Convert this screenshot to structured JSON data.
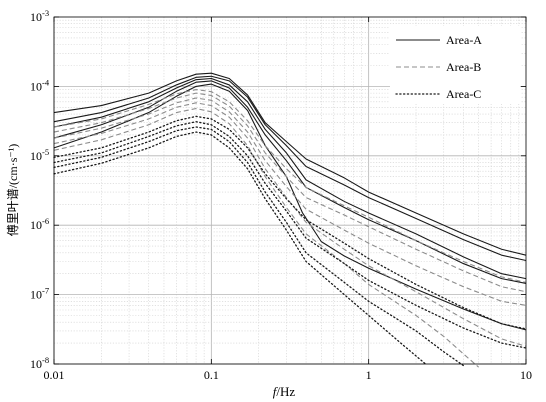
{
  "chart_data": {
    "type": "line",
    "x_scale": "log",
    "y_scale": "log",
    "xlim": [
      0.01,
      10
    ],
    "ylim": [
      1e-08,
      0.001
    ],
    "grid": true,
    "legend_position": "top-right",
    "xlabel": {
      "italic": "f",
      "rest": "/Hz"
    },
    "ylabel": "傅里叶谱/(cm·s⁻¹)",
    "x_ticks": [
      {
        "value": 0.01,
        "label": "0.01"
      },
      {
        "value": 0.1,
        "label": "0.1"
      },
      {
        "value": 1,
        "label": "1"
      },
      {
        "value": 10,
        "label": "10"
      }
    ],
    "y_ticks": [
      {
        "value": 1e-08,
        "label": "10",
        "exp": "-8"
      },
      {
        "value": 1e-07,
        "label": "10",
        "exp": "-7"
      },
      {
        "value": 1e-06,
        "label": "10",
        "exp": "-6"
      },
      {
        "value": 1e-05,
        "label": "10",
        "exp": "-5"
      },
      {
        "value": 0.0001,
        "label": "10",
        "exp": "-4"
      },
      {
        "value": 0.001,
        "label": "10",
        "exp": "-3"
      }
    ],
    "series": [
      {
        "name": "Area-A",
        "dash": "solid",
        "color": "#1a1a1a",
        "width": 1.1,
        "curves": [
          [
            [
              0.01,
              4.2e-05
            ],
            [
              0.02,
              5.3e-05
            ],
            [
              0.04,
              8e-05
            ],
            [
              0.06,
              0.00012
            ],
            [
              0.08,
              0.00015
            ],
            [
              0.1,
              0.000155
            ],
            [
              0.13,
              0.00013
            ],
            [
              0.17,
              7.5e-05
            ],
            [
              0.22,
              3e-05
            ],
            [
              0.3,
              1.6e-05
            ],
            [
              0.4,
              9e-06
            ],
            [
              0.7,
              4.8e-06
            ],
            [
              1,
              3e-06
            ],
            [
              2,
              1.5e-06
            ],
            [
              4,
              7.5e-07
            ],
            [
              7,
              4.5e-07
            ],
            [
              10,
              3.7e-07
            ]
          ],
          [
            [
              0.01,
              3.1e-05
            ],
            [
              0.02,
              4.2e-05
            ],
            [
              0.04,
              6.8e-05
            ],
            [
              0.06,
              0.000105
            ],
            [
              0.08,
              0.000135
            ],
            [
              0.1,
              0.00014
            ],
            [
              0.13,
              0.00012
            ],
            [
              0.17,
              7e-05
            ],
            [
              0.22,
              2.8e-05
            ],
            [
              0.3,
              1.4e-05
            ],
            [
              0.4,
              7e-06
            ],
            [
              0.7,
              3.8e-06
            ],
            [
              1,
              2.5e-06
            ],
            [
              2,
              1.25e-06
            ],
            [
              4,
              6.2e-07
            ],
            [
              7,
              3.7e-07
            ],
            [
              10,
              3.1e-07
            ]
          ],
          [
            [
              0.01,
              2.6e-05
            ],
            [
              0.02,
              3.6e-05
            ],
            [
              0.04,
              6e-05
            ],
            [
              0.06,
              9.5e-05
            ],
            [
              0.08,
              0.000125
            ],
            [
              0.1,
              0.00013
            ],
            [
              0.13,
              0.000105
            ],
            [
              0.17,
              6e-05
            ],
            [
              0.22,
              2.4e-05
            ],
            [
              0.3,
              1.1e-05
            ],
            [
              0.4,
              4.5e-06
            ],
            [
              0.7,
              2.2e-06
            ],
            [
              1,
              1.5e-06
            ],
            [
              2,
              7.5e-07
            ],
            [
              4,
              3.5e-07
            ],
            [
              7,
              2e-07
            ],
            [
              10,
              1.7e-07
            ]
          ],
          [
            [
              0.01,
              1.8e-05
            ],
            [
              0.02,
              2.8e-05
            ],
            [
              0.04,
              5e-05
            ],
            [
              0.06,
              8.5e-05
            ],
            [
              0.08,
              0.000115
            ],
            [
              0.1,
              0.00012
            ],
            [
              0.13,
              9.5e-05
            ],
            [
              0.17,
              5e-05
            ],
            [
              0.22,
              2e-05
            ],
            [
              0.3,
              8.5e-06
            ],
            [
              0.4,
              3.5e-06
            ],
            [
              0.7,
              1.8e-06
            ],
            [
              1,
              1.2e-06
            ],
            [
              2,
              6e-07
            ],
            [
              4,
              2.8e-07
            ],
            [
              7,
              1.7e-07
            ],
            [
              10,
              1.45e-07
            ]
          ],
          [
            [
              0.01,
              1.3e-05
            ],
            [
              0.02,
              2.2e-05
            ],
            [
              0.04,
              4.2e-05
            ],
            [
              0.06,
              7.2e-05
            ],
            [
              0.08,
              0.0001
            ],
            [
              0.1,
              0.000108
            ],
            [
              0.13,
              8.5e-05
            ],
            [
              0.17,
              4.5e-05
            ],
            [
              0.22,
              1.4e-05
            ],
            [
              0.3,
              5e-06
            ],
            [
              0.38,
              1.5e-06
            ],
            [
              0.5,
              5.8e-07
            ],
            [
              0.7,
              3.6e-07
            ],
            [
              1,
              2.4e-07
            ],
            [
              2,
              1.2e-07
            ],
            [
              4,
              6.2e-08
            ],
            [
              7,
              3.8e-08
            ],
            [
              10,
              3.1e-08
            ]
          ]
        ]
      },
      {
        "name": "Area-B",
        "dash": "dashed",
        "color": "#8c8c8c",
        "width": 1.1,
        "curves": [
          [
            [
              0.01,
              2.6e-05
            ],
            [
              0.02,
              3.4e-05
            ],
            [
              0.04,
              5.5e-05
            ],
            [
              0.06,
              7.8e-05
            ],
            [
              0.08,
              9e-05
            ],
            [
              0.1,
              8.4e-05
            ],
            [
              0.13,
              6e-05
            ],
            [
              0.17,
              3.2e-05
            ],
            [
              0.22,
              1.4e-05
            ],
            [
              0.3,
              6.5e-06
            ],
            [
              0.4,
              3.5e-06
            ],
            [
              0.7,
              1.9e-06
            ],
            [
              1,
              1.3e-06
            ],
            [
              2,
              6e-07
            ],
            [
              4,
              3e-07
            ],
            [
              7,
              1.8e-07
            ],
            [
              10,
              1.5e-07
            ]
          ],
          [
            [
              0.01,
              2.2e-05
            ],
            [
              0.02,
              3e-05
            ],
            [
              0.04,
              4.8e-05
            ],
            [
              0.06,
              6.8e-05
            ],
            [
              0.08,
              8e-05
            ],
            [
              0.1,
              7.4e-05
            ],
            [
              0.13,
              5.2e-05
            ],
            [
              0.17,
              2.7e-05
            ],
            [
              0.22,
              1.1e-05
            ],
            [
              0.3,
              5e-06
            ],
            [
              0.4,
              2.5e-06
            ],
            [
              0.7,
              1.4e-06
            ],
            [
              1,
              9.5e-07
            ],
            [
              2,
              4.5e-07
            ],
            [
              4,
              2.2e-07
            ],
            [
              7,
              1.3e-07
            ],
            [
              10,
              1.1e-07
            ]
          ],
          [
            [
              0.01,
              1.8e-05
            ],
            [
              0.02,
              2.5e-05
            ],
            [
              0.04,
              4e-05
            ],
            [
              0.06,
              5.8e-05
            ],
            [
              0.08,
              6.8e-05
            ],
            [
              0.1,
              6.3e-05
            ],
            [
              0.13,
              4.3e-05
            ],
            [
              0.17,
              2.2e-05
            ],
            [
              0.22,
              8.5e-06
            ],
            [
              0.3,
              3.6e-06
            ],
            [
              0.4,
              1.7e-06
            ],
            [
              0.7,
              8.5e-07
            ],
            [
              1,
              5.5e-07
            ],
            [
              2,
              2.6e-07
            ],
            [
              4,
              1.3e-07
            ],
            [
              7,
              8e-08
            ],
            [
              10,
              7e-08
            ]
          ],
          [
            [
              0.01,
              1.5e-05
            ],
            [
              0.02,
              2.1e-05
            ],
            [
              0.04,
              3.4e-05
            ],
            [
              0.06,
              5e-05
            ],
            [
              0.08,
              5.8e-05
            ],
            [
              0.1,
              5.3e-05
            ],
            [
              0.13,
              3.6e-05
            ],
            [
              0.17,
              1.8e-05
            ],
            [
              0.22,
              6.5e-06
            ],
            [
              0.3,
              2.5e-06
            ],
            [
              0.4,
              1.1e-06
            ],
            [
              0.7,
              4.5e-07
            ],
            [
              1,
              2.6e-07
            ],
            [
              2,
              1.1e-07
            ],
            [
              4,
              4.5e-08
            ],
            [
              7,
              2.3e-08
            ],
            [
              10,
              1.8e-08
            ]
          ],
          [
            [
              0.01,
              1.2e-05
            ],
            [
              0.02,
              1.7e-05
            ],
            [
              0.04,
              2.8e-05
            ],
            [
              0.06,
              4.2e-05
            ],
            [
              0.08,
              4.8e-05
            ],
            [
              0.1,
              4.3e-05
            ],
            [
              0.13,
              2.9e-05
            ],
            [
              0.17,
              1.4e-05
            ],
            [
              0.22,
              5e-06
            ],
            [
              0.3,
              1.8e-06
            ],
            [
              0.4,
              7.5e-07
            ],
            [
              0.7,
              2.8e-07
            ],
            [
              1,
              1.4e-07
            ],
            [
              2,
              5e-08
            ],
            [
              3,
              2.5e-08
            ],
            [
              4,
              1.4e-08
            ],
            [
              5,
              9e-09
            ]
          ]
        ]
      },
      {
        "name": "Area-C",
        "dash": "dotted",
        "color": "#1a1a1a",
        "width": 1.3,
        "curves": [
          [
            [
              0.01,
              9.5e-06
            ],
            [
              0.02,
              1.3e-05
            ],
            [
              0.04,
              2.2e-05
            ],
            [
              0.06,
              3.2e-05
            ],
            [
              0.08,
              3.7e-05
            ],
            [
              0.1,
              3.4e-05
            ],
            [
              0.13,
              2.4e-05
            ],
            [
              0.17,
              1.3e-05
            ],
            [
              0.22,
              5.5e-06
            ],
            [
              0.3,
              2.4e-06
            ],
            [
              0.4,
              1.2e-06
            ],
            [
              0.7,
              5.5e-07
            ],
            [
              1,
              3.3e-07
            ],
            [
              2,
              1.4e-07
            ],
            [
              4,
              6.5e-08
            ],
            [
              7,
              3.8e-08
            ],
            [
              10,
              3.2e-08
            ]
          ],
          [
            [
              0.01,
              8e-06
            ],
            [
              0.02,
              1.1e-05
            ],
            [
              0.04,
              1.9e-05
            ],
            [
              0.06,
              2.7e-05
            ],
            [
              0.08,
              3.1e-05
            ],
            [
              0.1,
              2.8e-05
            ],
            [
              0.13,
              1.9e-05
            ],
            [
              0.17,
              1e-05
            ],
            [
              0.22,
              4e-06
            ],
            [
              0.3,
              1.6e-06
            ],
            [
              0.4,
              6.5e-07
            ],
            [
              0.7,
              2.8e-07
            ],
            [
              1,
              1.6e-07
            ],
            [
              2,
              7e-08
            ],
            [
              4,
              3.3e-08
            ],
            [
              7,
              2e-08
            ],
            [
              10,
              1.7e-08
            ]
          ],
          [
            [
              0.01,
              6.8e-06
            ],
            [
              0.02,
              9.5e-06
            ],
            [
              0.04,
              1.6e-05
            ],
            [
              0.06,
              2.3e-05
            ],
            [
              0.08,
              2.6e-05
            ],
            [
              0.1,
              2.4e-05
            ],
            [
              0.13,
              1.6e-05
            ],
            [
              0.17,
              8e-06
            ],
            [
              0.22,
              3e-06
            ],
            [
              0.3,
              1.1e-06
            ],
            [
              0.4,
              4e-07
            ],
            [
              0.7,
              1.5e-07
            ],
            [
              1,
              8e-08
            ],
            [
              2,
              3e-08
            ],
            [
              3,
              1.5e-08
            ],
            [
              4,
              9.5e-09
            ]
          ],
          [
            [
              0.01,
              5.5e-06
            ],
            [
              0.02,
              7.8e-06
            ],
            [
              0.04,
              1.3e-05
            ],
            [
              0.06,
              1.9e-05
            ],
            [
              0.08,
              2.2e-05
            ],
            [
              0.1,
              2e-05
            ],
            [
              0.13,
              1.3e-05
            ],
            [
              0.17,
              6.5e-06
            ],
            [
              0.22,
              2.4e-06
            ],
            [
              0.3,
              8.5e-07
            ],
            [
              0.4,
              3e-07
            ],
            [
              0.7,
              1e-07
            ],
            [
              1,
              5e-08
            ],
            [
              1.6,
              2e-08
            ],
            [
              2.3,
              1e-08
            ]
          ]
        ]
      }
    ]
  }
}
